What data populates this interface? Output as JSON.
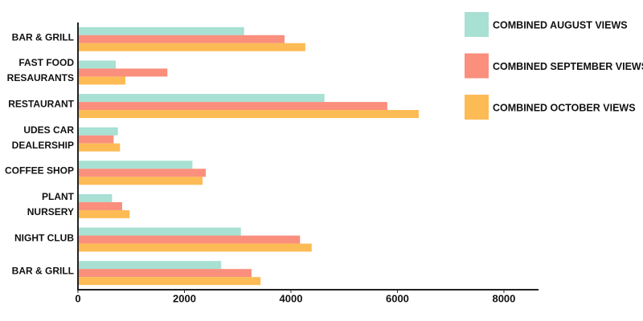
{
  "chart_data": {
    "type": "hbar",
    "categories": [
      "BAR & GRILL",
      "FAST FOOD\nRESAURANTS",
      "RESTAURANT",
      "UDES CAR\nDEALERSHIP",
      "COFFEE SHOP",
      "PLANT NURSERY",
      "NIGHT CLUB",
      "BAR & GRILL"
    ],
    "series": [
      {
        "name": "COMBINED AUGUST VIEWS",
        "color": "#a8e0d3",
        "values": [
          3120,
          710,
          4630,
          750,
          2150,
          640,
          3060,
          2690
        ]
      },
      {
        "name": "COMBINED SEPTEMBER VIEWS",
        "color": "#fa8f7d",
        "values": [
          3880,
          1680,
          5810,
          670,
          2400,
          830,
          4170,
          3260
        ]
      },
      {
        "name": "COMBINED OCTOBER VIEWS",
        "color": "#fdbb55",
        "values": [
          4270,
          890,
          6400,
          790,
          2340,
          970,
          4390,
          3430
        ]
      }
    ],
    "xlim": [
      0,
      8650
    ],
    "xticks": [
      0,
      2000,
      4000,
      6000,
      8000
    ]
  }
}
